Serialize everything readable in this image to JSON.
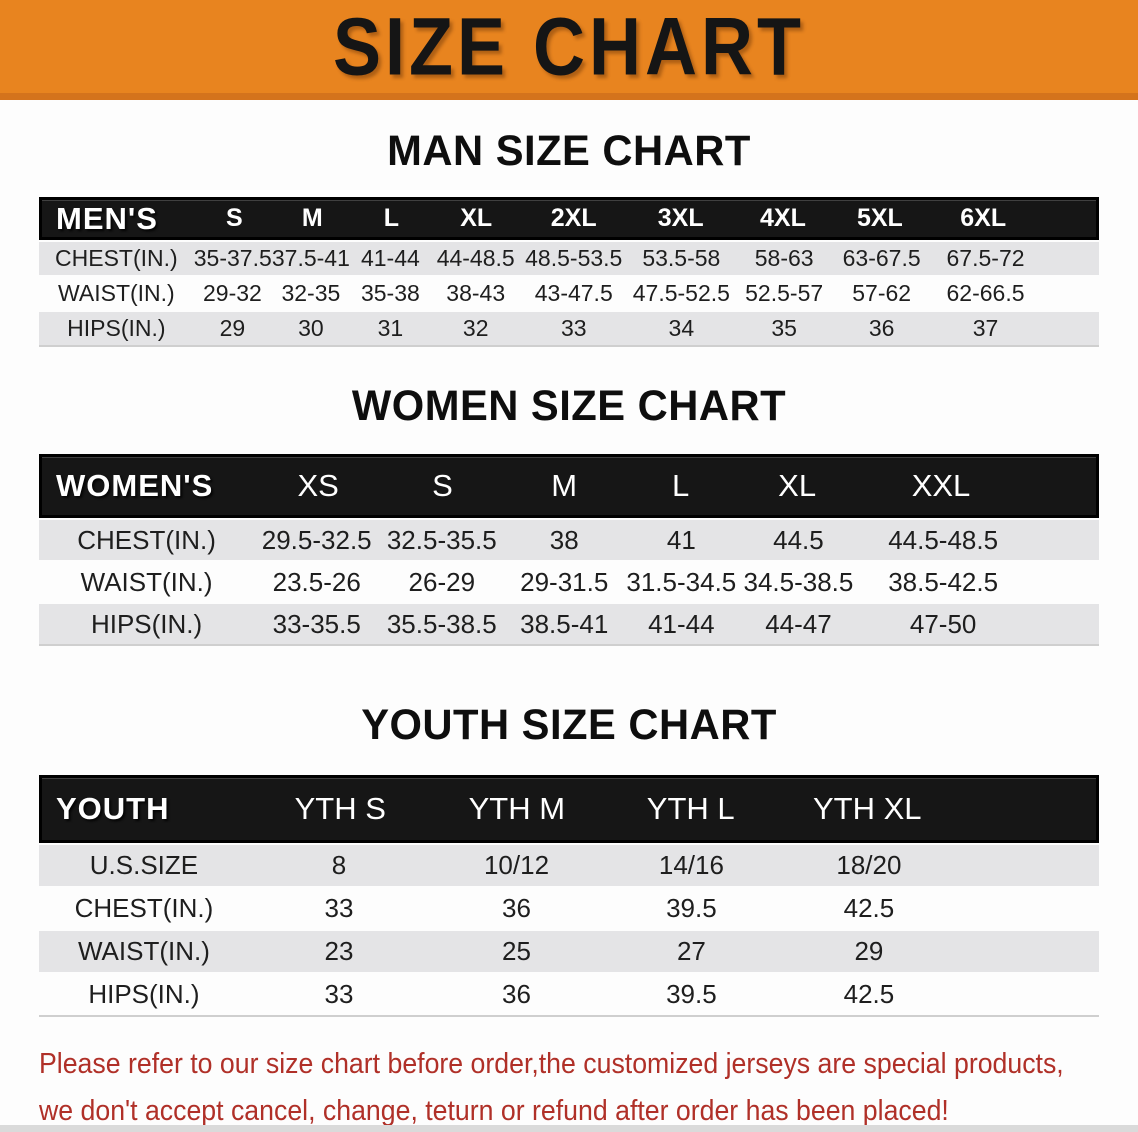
{
  "banner": {
    "title": "SIZE CHART"
  },
  "sections": [
    {
      "heading": "MAN SIZE CHART",
      "table": {
        "label": "MEN'S",
        "columns": [
          "S",
          "M",
          "L",
          "XL",
          "2XL",
          "3XL",
          "4XL",
          "5XL",
          "6XL"
        ],
        "rows": [
          {
            "label": "CHEST(IN.)",
            "values": [
              "35-37.5",
              "37.5-41",
              "41-44",
              "44-48.5",
              "48.5-53.5",
              "53.5-58",
              "58-63",
              "63-67.5",
              "67.5-72"
            ]
          },
          {
            "label": "WAIST(IN.)",
            "values": [
              "29-32",
              "32-35",
              "35-38",
              "38-43",
              "43-47.5",
              "47.5-52.5",
              "52.5-57",
              "57-62",
              "62-66.5"
            ]
          },
          {
            "label": "HIPS(IN.)",
            "values": [
              "29",
              "30",
              "31",
              "32",
              "33",
              "34",
              "35",
              "36",
              "37"
            ]
          }
        ]
      }
    },
    {
      "heading": "WOMEN SIZE CHART",
      "table": {
        "label": "WOMEN'S",
        "columns": [
          "XS",
          "S",
          "M",
          "L",
          "XL",
          "XXL"
        ],
        "rows": [
          {
            "label": "CHEST(IN.)",
            "values": [
              "29.5-32.5",
              "32.5-35.5",
              "38",
              "41",
              "44.5",
              "44.5-48.5"
            ]
          },
          {
            "label": "WAIST(IN.)",
            "values": [
              "23.5-26",
              "26-29",
              "29-31.5",
              "31.5-34.5",
              "34.5-38.5",
              "38.5-42.5"
            ]
          },
          {
            "label": "HIPS(IN.)",
            "values": [
              "33-35.5",
              "35.5-38.5",
              "38.5-41",
              "41-44",
              "44-47",
              "47-50"
            ]
          }
        ]
      }
    },
    {
      "heading": "YOUTH SIZE CHART",
      "table": {
        "label": "YOUTH",
        "columns": [
          "YTH S",
          "YTH M",
          "YTH L",
          "YTH XL"
        ],
        "rows": [
          {
            "label": "U.S.SIZE",
            "values": [
              "8",
              "10/12",
              "14/16",
              "18/20"
            ]
          },
          {
            "label": "CHEST(IN.)",
            "values": [
              "33",
              "36",
              "39.5",
              "42.5"
            ]
          },
          {
            "label": "WAIST(IN.)",
            "values": [
              "23",
              "25",
              "27",
              "29"
            ]
          },
          {
            "label": "HIPS(IN.)",
            "values": [
              "33",
              "36",
              "39.5",
              "42.5"
            ]
          }
        ]
      }
    }
  ],
  "footer": {
    "line1": "Please refer to our size chart before order,the customized jerseys are special products,",
    "line2": "we don't accept cancel, change, teturn or refund after order has been placed!"
  },
  "colors": {
    "banner_orange": "#E8841F",
    "banner_edge": "#D4731C",
    "header_bar": "#161616",
    "row_shaded": "#E4E4E6",
    "notice_red": "#B03028"
  }
}
